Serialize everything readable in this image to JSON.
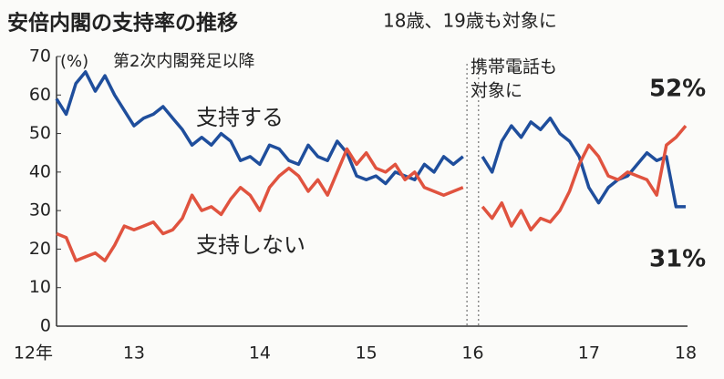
{
  "chart_data": {
    "type": "line",
    "title": "安倍内閣の支持率の推移",
    "subtitle": "第2次内閣発足以降",
    "y_unit": "(%)",
    "annotations": [
      "18歳、19歳も対象に",
      "携帯電話も",
      "対象に"
    ],
    "categories": [
      "12年",
      null,
      null,
      null,
      null,
      null,
      null,
      null,
      "13",
      null,
      null,
      null,
      null,
      null,
      null,
      null,
      null,
      null,
      null,
      null,
      null,
      "14",
      null,
      null,
      null,
      null,
      null,
      null,
      null,
      null,
      null,
      null,
      "15",
      null,
      null,
      null,
      null,
      null,
      null,
      null,
      null,
      null,
      null,
      "16",
      null,
      null,
      null,
      null,
      null,
      null,
      null,
      null,
      null,
      null,
      null,
      "17",
      null,
      null,
      null,
      null,
      null,
      null,
      null,
      null,
      null,
      "18"
    ],
    "series": [
      {
        "name": "支持する",
        "color": "#1f4e9c",
        "values": [
          59,
          55,
          63,
          66,
          61,
          65,
          60,
          56,
          52,
          54,
          55,
          57,
          54,
          51,
          47,
          49,
          47,
          50,
          48,
          43,
          44,
          42,
          47,
          46,
          43,
          42,
          47,
          44,
          43,
          48,
          45,
          39,
          38,
          39,
          37,
          40,
          39,
          38,
          42,
          40,
          44,
          42,
          44,
          null,
          44,
          40,
          48,
          52,
          49,
          53,
          51,
          54,
          50,
          48,
          44,
          36,
          32,
          36,
          38,
          39,
          42,
          45,
          43,
          44,
          31,
          31
        ],
        "value_labels": [
          null,
          null,
          null,
          null,
          null,
          null,
          null,
          null,
          null,
          null,
          null,
          null,
          null,
          null,
          null,
          null,
          null,
          null,
          null,
          null,
          null,
          null,
          null,
          null,
          null,
          null,
          null,
          null,
          null,
          null,
          null,
          null,
          null,
          null,
          null,
          null,
          null,
          null,
          null,
          null,
          null,
          null,
          null,
          null,
          null,
          null,
          null,
          null,
          null,
          null,
          null,
          null,
          null,
          null,
          null,
          null,
          null,
          null,
          null,
          null,
          null,
          null,
          null,
          null,
          null,
          "31%"
        ]
      },
      {
        "name": "支持しない",
        "color": "#e0533f",
        "values": [
          24,
          23,
          17,
          18,
          19,
          17,
          21,
          26,
          25,
          26,
          27,
          24,
          25,
          28,
          34,
          30,
          31,
          29,
          33,
          36,
          34,
          30,
          36,
          39,
          41,
          39,
          35,
          38,
          34,
          40,
          46,
          42,
          45,
          41,
          40,
          42,
          38,
          40,
          36,
          35,
          34,
          35,
          36,
          null,
          31,
          28,
          32,
          26,
          30,
          25,
          28,
          27,
          30,
          35,
          42,
          47,
          44,
          39,
          38,
          40,
          39,
          38,
          34,
          47,
          49,
          52
        ],
        "value_labels": [
          null,
          null,
          null,
          null,
          null,
          null,
          null,
          null,
          null,
          null,
          null,
          null,
          null,
          null,
          null,
          null,
          null,
          null,
          null,
          null,
          null,
          null,
          null,
          null,
          null,
          null,
          null,
          null,
          null,
          null,
          null,
          null,
          null,
          null,
          null,
          null,
          null,
          null,
          null,
          null,
          null,
          null,
          null,
          null,
          null,
          null,
          null,
          null,
          null,
          null,
          null,
          null,
          null,
          null,
          null,
          null,
          null,
          null,
          null,
          null,
          null,
          null,
          null,
          null,
          null,
          "52%"
        ]
      }
    ],
    "ylim": [
      0,
      70
    ],
    "yticks": [
      0,
      10,
      20,
      30,
      40,
      50,
      60,
      70
    ],
    "grid": false
  }
}
